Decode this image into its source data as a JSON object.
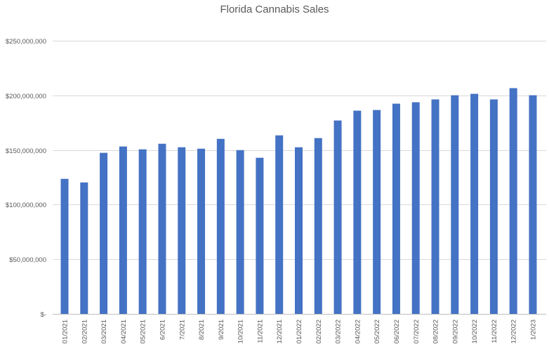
{
  "chart_data": {
    "type": "bar",
    "title": "Florida Cannabis Sales",
    "xlabel": "",
    "ylabel": "",
    "ylim": [
      0,
      250000000
    ],
    "yticks": [
      0,
      50000000,
      100000000,
      150000000,
      200000000,
      250000000
    ],
    "ytick_labels": [
      "$-",
      "$50,000,000",
      "$100,000,000",
      "$150,000,000",
      "$200,000,000",
      "$250,000,000"
    ],
    "grid": true,
    "legend": "none",
    "bar_color": "#4472C4",
    "categories": [
      "01/2021",
      "02/2021",
      "03/2021",
      "04/2021",
      "05/2021",
      "6/2021",
      "7/2021",
      "8/2021",
      "9/2021",
      "10/2021",
      "11/2021",
      "12/2021",
      "01/2022",
      "02/2022",
      "03/2022",
      "04/2022",
      "05/2022",
      "06/2022",
      "07/2022",
      "08/2022",
      "09/2022",
      "10/2022",
      "11/2022",
      "12/2022",
      "1/2023"
    ],
    "values": [
      123600000,
      120300000,
      147400000,
      153200000,
      150600000,
      155700000,
      152500000,
      151200000,
      160200000,
      149900000,
      142900000,
      163400000,
      152500000,
      160900000,
      177000000,
      186000000,
      186600000,
      192400000,
      193700000,
      196300000,
      200100000,
      201400000,
      196300000,
      206600000,
      200100000
    ]
  }
}
